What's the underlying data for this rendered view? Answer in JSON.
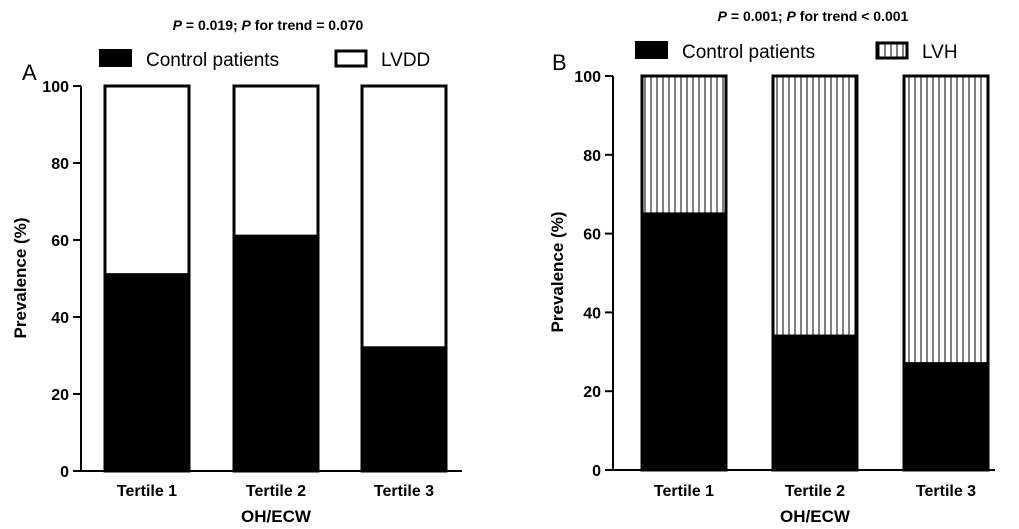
{
  "figure": {
    "width": 1019,
    "height": 529
  },
  "colors": {
    "control": "#000000",
    "outcome": "#ffffff",
    "axis": "#000000",
    "text": "#000000"
  },
  "chart_data": [
    {
      "panel": "A",
      "type": "bar",
      "stacked": true,
      "title_parts": [
        {
          "text": "P",
          "italic": true
        },
        {
          "text": " = 0.019; ",
          "italic": false
        },
        {
          "text": "P",
          "italic": true
        },
        {
          "text": " for trend = 0.070",
          "italic": false
        }
      ],
      "categories": [
        "Tertile 1",
        "Tertile 2",
        "Tertile 3"
      ],
      "series": [
        {
          "name": "Control patients",
          "values": [
            51,
            61,
            32
          ],
          "fill": "solid"
        },
        {
          "name": "LVDD",
          "values": [
            49,
            39,
            68
          ],
          "fill": "white"
        }
      ],
      "xlabel": "OH/ECW",
      "ylabel": "Prevalence (%)",
      "ylim": [
        0,
        100
      ],
      "yticks": [
        0,
        20,
        40,
        60,
        80,
        100
      ],
      "legend_position": "top"
    },
    {
      "panel": "B",
      "type": "bar",
      "stacked": true,
      "title_parts": [
        {
          "text": "P",
          "italic": true
        },
        {
          "text": " = 0.001; ",
          "italic": false
        },
        {
          "text": "P",
          "italic": true
        },
        {
          "text": " for trend < 0.001",
          "italic": false
        }
      ],
      "categories": [
        "Tertile 1",
        "Tertile 2",
        "Tertile 3"
      ],
      "series": [
        {
          "name": "Control patients",
          "values": [
            65,
            34,
            27
          ],
          "fill": "solid"
        },
        {
          "name": "LVH",
          "values": [
            35,
            66,
            73
          ],
          "fill": "vertical-hatch"
        }
      ],
      "xlabel": "OH/ECW",
      "ylabel": "Prevalence (%)",
      "ylim": [
        0,
        100
      ],
      "yticks": [
        0,
        20,
        40,
        60,
        80,
        100
      ],
      "legend_position": "top"
    }
  ]
}
